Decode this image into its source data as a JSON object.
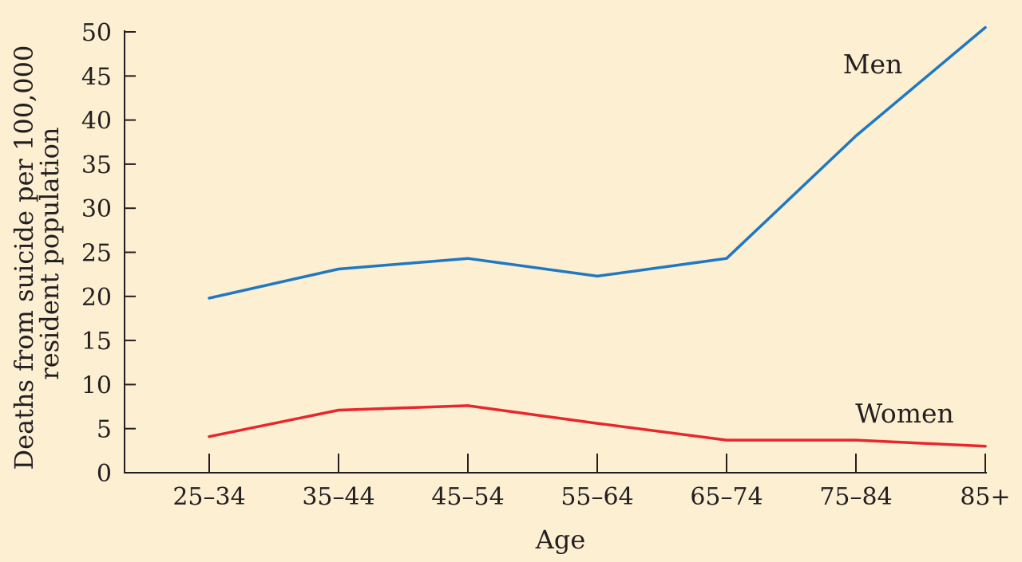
{
  "chart_data": {
    "type": "line",
    "xlabel": "Age",
    "ylabel_lines": [
      "Deaths from suicide per 100,000",
      "resident population"
    ],
    "categories": [
      "25–34",
      "35–44",
      "45–54",
      "55–64",
      "65–74",
      "75–84",
      "85+"
    ],
    "ylim": [
      0,
      50
    ],
    "yticks": [
      0,
      5,
      10,
      15,
      20,
      25,
      30,
      35,
      40,
      45,
      50
    ],
    "grid": false,
    "legend": "inline labels",
    "series": [
      {
        "name": "Men",
        "color": "#1f78c1",
        "values": [
          19.8,
          23.1,
          24.3,
          22.3,
          24.3,
          38.2,
          50.5
        ]
      },
      {
        "name": "Women",
        "color": "#e8262b",
        "values": [
          4.1,
          7.1,
          7.6,
          5.6,
          3.7,
          3.7,
          3.0
        ]
      }
    ]
  },
  "colors": {
    "background": "#fdefd2",
    "axis": "#231f20"
  }
}
